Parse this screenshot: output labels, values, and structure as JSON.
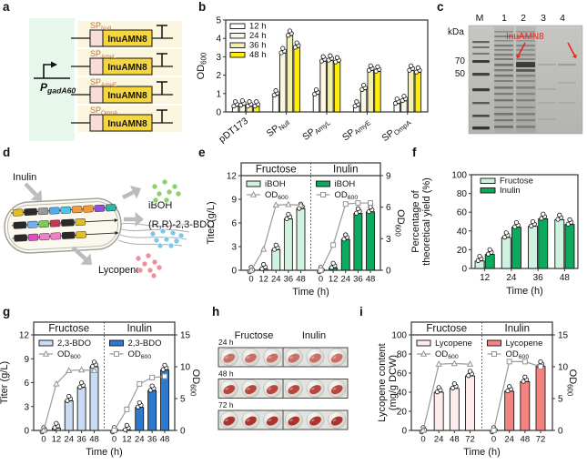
{
  "panel_a": {
    "letter": "a",
    "promoter_label": "P~gadA60~",
    "gene_label": "InuAMN8",
    "sp_labels": [
      "SP~Null~",
      "SP~AmyL~",
      "SP~AmyE~",
      "SP~OmpA~"
    ],
    "colors": {
      "bg_left": "#e7f7ec",
      "bg_row": "#fdf6df",
      "sp_box": "#f8dcd6",
      "gene_box": "#f6d63e",
      "sp_text": "#b5764a"
    }
  },
  "panel_b": {
    "letter": "b"
  },
  "panel_c": {
    "letter": "c",
    "kda_label": "kDa",
    "marker_lane_label": "M",
    "lane_labels": [
      "1",
      "2",
      "3",
      "4"
    ],
    "mw_labels": [
      "70",
      "50"
    ],
    "annotation": "InuAMN8",
    "annotation_color": "#e8241f"
  },
  "panel_d": {
    "letter": "d",
    "labels": {
      "substrate": "Inulin",
      "product1": "iBOH",
      "product2": "(R,R)-2,3-BDO",
      "product3": "Lycopene"
    },
    "dot_colors": {
      "iboh": "#8fd06a",
      "bdo": "#7cc8ea",
      "lycopene": "#ef8f9b"
    },
    "operon_rows": [
      [
        "#e2bd2a",
        "#2a2a2a",
        "#999999",
        "#56a8e8",
        "#49c9e9",
        "#f29b38",
        "#f29b38",
        "#9550d8",
        "#2fb5a6"
      ],
      [
        "#2a2a2a",
        "#6cb2ef",
        "#7ace53",
        "#c23a57",
        "#2a2a2a",
        "#e2bd2a"
      ],
      [
        "#2a2a2a",
        "#e04ac2",
        "#f27ec6",
        "#f27ec6",
        "#2a2a2a",
        "#e2bd2a"
      ]
    ]
  },
  "panel_e": {
    "letter": "e"
  },
  "panel_f": {
    "letter": "f"
  },
  "panel_g": {
    "letter": "g"
  },
  "panel_h": {
    "letter": "h",
    "columns": [
      "Fructose",
      "Inulin"
    ],
    "rows": [
      "24 h",
      "48 h",
      "72 h"
    ],
    "pellet_colors": [
      "#cb6f66",
      "#b8453e",
      "#ab3430"
    ]
  },
  "panel_i": {
    "letter": "i"
  },
  "chart_data": [
    {
      "id": "b",
      "type": "bar",
      "ylabel": [
        "OD~600~"
      ],
      "ylim": [
        0,
        5
      ],
      "yticks": [
        0,
        1,
        2,
        3,
        4,
        5
      ],
      "categories": [
        "pDT173",
        "SP~Null~",
        "SP~AmyL~",
        "SP~AmyE~",
        "SP~OmpA~"
      ],
      "rotate_cat_labels": true,
      "series": [
        {
          "name": "12 h",
          "color": "#ffffff",
          "values": [
            0.3,
            0.9,
            0.95,
            0.3,
            0.45
          ]
        },
        {
          "name": "24 h",
          "color": "#fbf7e3",
          "values": [
            0.35,
            3.2,
            2.75,
            1.2,
            0.6
          ]
        },
        {
          "name": "36 h",
          "color": "#f6f0ae",
          "values": [
            0.3,
            4.15,
            2.8,
            2.25,
            2.25
          ]
        },
        {
          "name": "48 h",
          "color": "#ffee0a",
          "values": [
            0.3,
            3.5,
            2.7,
            2.2,
            2.15
          ]
        }
      ]
    },
    {
      "id": "e",
      "type": "bar+line",
      "x": [
        0,
        12,
        24,
        36,
        48
      ],
      "xlabel": "Time (h)",
      "left": {
        "label": [
          "Titer (g/L)"
        ],
        "lim": [
          0,
          12
        ],
        "ticks": [
          0,
          3,
          6,
          9,
          12
        ]
      },
      "right": {
        "label": [
          "OD~600~"
        ],
        "lim": [
          0,
          9
        ],
        "ticks": [
          0,
          3,
          6,
          9
        ]
      },
      "line_label": "OD~600~",
      "halves": [
        {
          "title": "Fructose",
          "bar_name": "iBOH",
          "bar_color": "#cef2de",
          "marker": "triangle",
          "bars": [
            0,
            0.15,
            2.6,
            6.5,
            7.8
          ],
          "od": [
            0,
            2.0,
            6.2,
            6.25,
            6.2
          ]
        },
        {
          "title": "Inulin",
          "bar_name": "iBOH",
          "bar_color": "#0caa5d",
          "marker": "square",
          "bars": [
            0,
            0.3,
            3.9,
            7.2,
            7.4
          ],
          "od": [
            0,
            2.4,
            6.3,
            6.4,
            6.4
          ]
        }
      ]
    },
    {
      "id": "f",
      "type": "bar",
      "ylabel": [
        "Percentage of",
        "theoretical yield (%)"
      ],
      "ylim": [
        0,
        100
      ],
      "yticks": [
        0,
        20,
        40,
        60,
        80,
        100
      ],
      "xlabel": "Time (h)",
      "categories": [
        "12",
        "24",
        "36",
        "48"
      ],
      "rotate_cat_labels": false,
      "series": [
        {
          "name": "Fructose",
          "color": "#cef2de",
          "values": [
            8,
            33,
            45,
            52
          ]
        },
        {
          "name": "Inulin",
          "color": "#0caa5d",
          "values": [
            15,
            44,
            53,
            47
          ]
        }
      ]
    },
    {
      "id": "g",
      "type": "bar+line",
      "x": [
        0,
        12,
        24,
        36,
        48
      ],
      "xlabel": "Time (h)",
      "left": {
        "label": [
          "Titer (g/L)"
        ],
        "lim": [
          0,
          12
        ],
        "ticks": [
          0,
          3,
          6,
          9,
          12
        ]
      },
      "right": {
        "label": [
          "OD~600~"
        ],
        "lim": [
          0,
          15
        ],
        "ticks": [
          0,
          5,
          10,
          15
        ]
      },
      "line_label": "OD~600~",
      "halves": [
        {
          "title": "Fructose",
          "bar_name": "2,3-BDO",
          "bar_color": "#cadcf3",
          "marker": "triangle",
          "bars": [
            0,
            0.3,
            3.7,
            5.4,
            8.0
          ],
          "od": [
            0,
            7.3,
            9.4,
            9.5,
            9.4
          ]
        },
        {
          "title": "Inulin",
          "bar_name": "2,3-BDO",
          "bar_color": "#2e79cb",
          "marker": "square",
          "bars": [
            0,
            0.05,
            2.9,
            5.0,
            7.6
          ],
          "od": [
            0,
            3.3,
            7.3,
            8.3,
            8.5
          ]
        }
      ]
    },
    {
      "id": "i",
      "type": "bar+line",
      "x": [
        0,
        24,
        48,
        72
      ],
      "xlabel": "Time (h)",
      "left": {
        "label": [
          "Lycopene content",
          "(mg/g DCW)"
        ],
        "lim": [
          0,
          100
        ],
        "ticks": [
          0,
          20,
          40,
          60,
          80,
          100
        ]
      },
      "right": {
        "label": [
          "OD~600~"
        ],
        "lim": [
          0,
          15
        ],
        "ticks": [
          0,
          5,
          10,
          15
        ]
      },
      "line_label": "OD~600~",
      "halves": [
        {
          "title": "Fructose",
          "bar_name": "Lycopene",
          "bar_color": "#fdeceb",
          "marker": "triangle",
          "bars": [
            0,
            40,
            44,
            57
          ],
          "od": [
            0,
            10.4,
            10.5,
            10.4
          ]
        },
        {
          "title": "Inulin",
          "bar_name": "Lycopene",
          "bar_color": "#f3837f",
          "marker": "square",
          "bars": [
            0,
            41,
            51,
            67
          ],
          "od": [
            0,
            10.8,
            10.8,
            10.0
          ]
        }
      ]
    }
  ]
}
